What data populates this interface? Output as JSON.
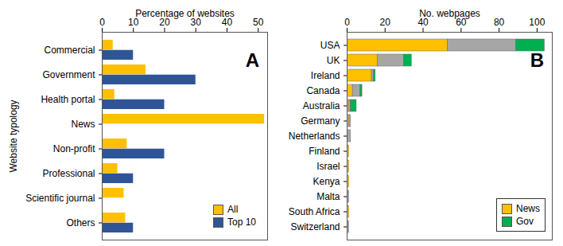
{
  "chart_data": [
    {
      "type": "bar",
      "orientation": "horizontal",
      "stacked": false,
      "xlabel": "Percentage of websites",
      "ylabel": "Website typology",
      "annotations": [
        "A"
      ],
      "legend": "lower right",
      "categories": [
        "Commercial",
        "Government",
        "Health portal",
        "News",
        "Non-profit",
        "Professional",
        "Scientific journal",
        "Others"
      ],
      "series": [
        {
          "name": "All",
          "color": "#FFC000",
          "values": [
            3.5,
            14,
            4,
            52,
            8,
            5,
            7,
            7.5
          ]
        },
        {
          "name": "Top 10",
          "color": "#2F5597",
          "values": [
            10,
            30,
            20,
            0,
            20,
            10,
            0,
            10
          ]
        }
      ],
      "xlim": [
        0,
        53
      ],
      "xticks": [
        0,
        10,
        20,
        30,
        40,
        50
      ]
    },
    {
      "type": "bar",
      "orientation": "horizontal",
      "stacked": true,
      "xlabel": "No. webpages",
      "annotations": [
        "B"
      ],
      "legend": "lower right",
      "categories": [
        "USA",
        "UK",
        "Ireland",
        "Canada",
        "Australia",
        "Germany",
        "Netherlands",
        "Finland",
        "Israel",
        "Kenya",
        "Malta",
        "South Africa",
        "Switzerland"
      ],
      "series": [
        {
          "name": "News",
          "color": "#FFC000",
          "values": [
            53,
            16,
            13,
            3,
            1,
            1,
            0,
            1,
            1,
            1,
            0,
            1,
            0
          ]
        },
        {
          "name": null,
          "color": "#A6A6A6",
          "values": [
            36,
            14,
            1,
            4,
            1,
            1,
            2,
            0,
            0,
            0,
            1,
            0,
            1
          ]
        },
        {
          "name": "Gov",
          "color": "#00B050",
          "values": [
            15,
            4,
            1,
            1,
            3,
            0,
            0,
            0,
            0,
            0,
            0,
            0,
            0
          ]
        }
      ],
      "xlim": [
        0,
        108
      ],
      "xticks": [
        0,
        20,
        40,
        60,
        80,
        100
      ]
    }
  ]
}
